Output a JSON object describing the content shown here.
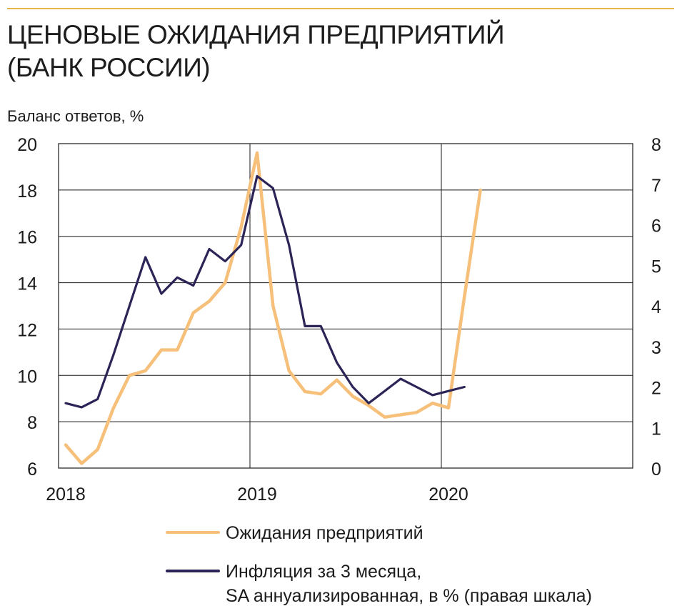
{
  "title_lines": [
    "ЦЕНОВЫЕ ОЖИДАНИЯ ПРЕДПРИЯТИЙ",
    "(БАНК РОССИИ)"
  ],
  "chart_data": {
    "type": "line",
    "title": "ЦЕНОВЫЕ ОЖИДАНИЯ ПРЕДПРИЯТИЙ (БАНК РОССИИ)",
    "ylabel": "Баланс ответов, %",
    "ylim": [
      6,
      20
    ],
    "yticks": [
      "6",
      "8",
      "10",
      "12",
      "14",
      "16",
      "18",
      "20"
    ],
    "y2lim": [
      0,
      8
    ],
    "y2ticks": [
      "0",
      "1",
      "2",
      "3",
      "4",
      "5",
      "6",
      "7",
      "8"
    ],
    "xlim": [
      2018,
      2021
    ],
    "xticks": [
      "2018",
      "2019",
      "2020"
    ],
    "grid": true,
    "legend_position": "bottom",
    "colors": {
      "expectations": "#f7c07a",
      "inflation": "#2b2456",
      "top_rule": "#e7b44a"
    },
    "series": [
      {
        "name": "Ожидания предприятий",
        "axis": "left",
        "x": [
          "2018-01",
          "2018-02",
          "2018-03",
          "2018-04",
          "2018-05",
          "2018-06",
          "2018-07",
          "2018-08",
          "2018-09",
          "2018-10",
          "2018-11",
          "2018-12",
          "2019-01",
          "2019-02",
          "2019-03",
          "2019-04",
          "2019-05",
          "2019-06",
          "2019-07",
          "2019-08",
          "2019-09",
          "2019-10",
          "2019-11",
          "2019-12",
          "2020-01",
          "2020-02",
          "2020-03"
        ],
        "values": [
          7.0,
          6.2,
          6.8,
          8.6,
          10.0,
          10.2,
          11.1,
          11.1,
          12.7,
          13.2,
          14.0,
          16.4,
          19.6,
          13.0,
          10.2,
          9.3,
          9.2,
          9.8,
          9.1,
          8.7,
          8.2,
          8.3,
          8.4,
          8.8,
          8.6,
          13.4,
          18.0
        ]
      },
      {
        "name": "Инфляция за 3 месяца, SA аннуализированная, в % (правая шкала)",
        "axis": "right",
        "x": [
          "2018-01",
          "2018-02",
          "2018-03",
          "2018-04",
          "2018-05",
          "2018-06",
          "2018-07",
          "2018-08",
          "2018-09",
          "2018-10",
          "2018-11",
          "2018-12",
          "2019-01",
          "2019-02",
          "2019-03",
          "2019-04",
          "2019-05",
          "2019-06",
          "2019-07",
          "2019-08",
          "2019-09",
          "2019-10",
          "2019-11",
          "2019-12",
          "2020-01",
          "2020-02"
        ],
        "values": [
          1.6,
          1.5,
          1.7,
          2.8,
          4.0,
          5.2,
          4.3,
          4.7,
          4.5,
          5.4,
          5.1,
          5.5,
          7.2,
          6.9,
          5.5,
          3.5,
          3.5,
          2.6,
          2.0,
          1.6,
          1.9,
          2.2,
          2.0,
          1.8,
          1.9,
          2.0
        ]
      }
    ]
  },
  "legend": {
    "expectations_label": "Ожидания предприятий",
    "inflation_label_line1": "Инфляция за 3 месяца,",
    "inflation_label_line2": "SA аннуализированная, в % (правая шкала)"
  }
}
